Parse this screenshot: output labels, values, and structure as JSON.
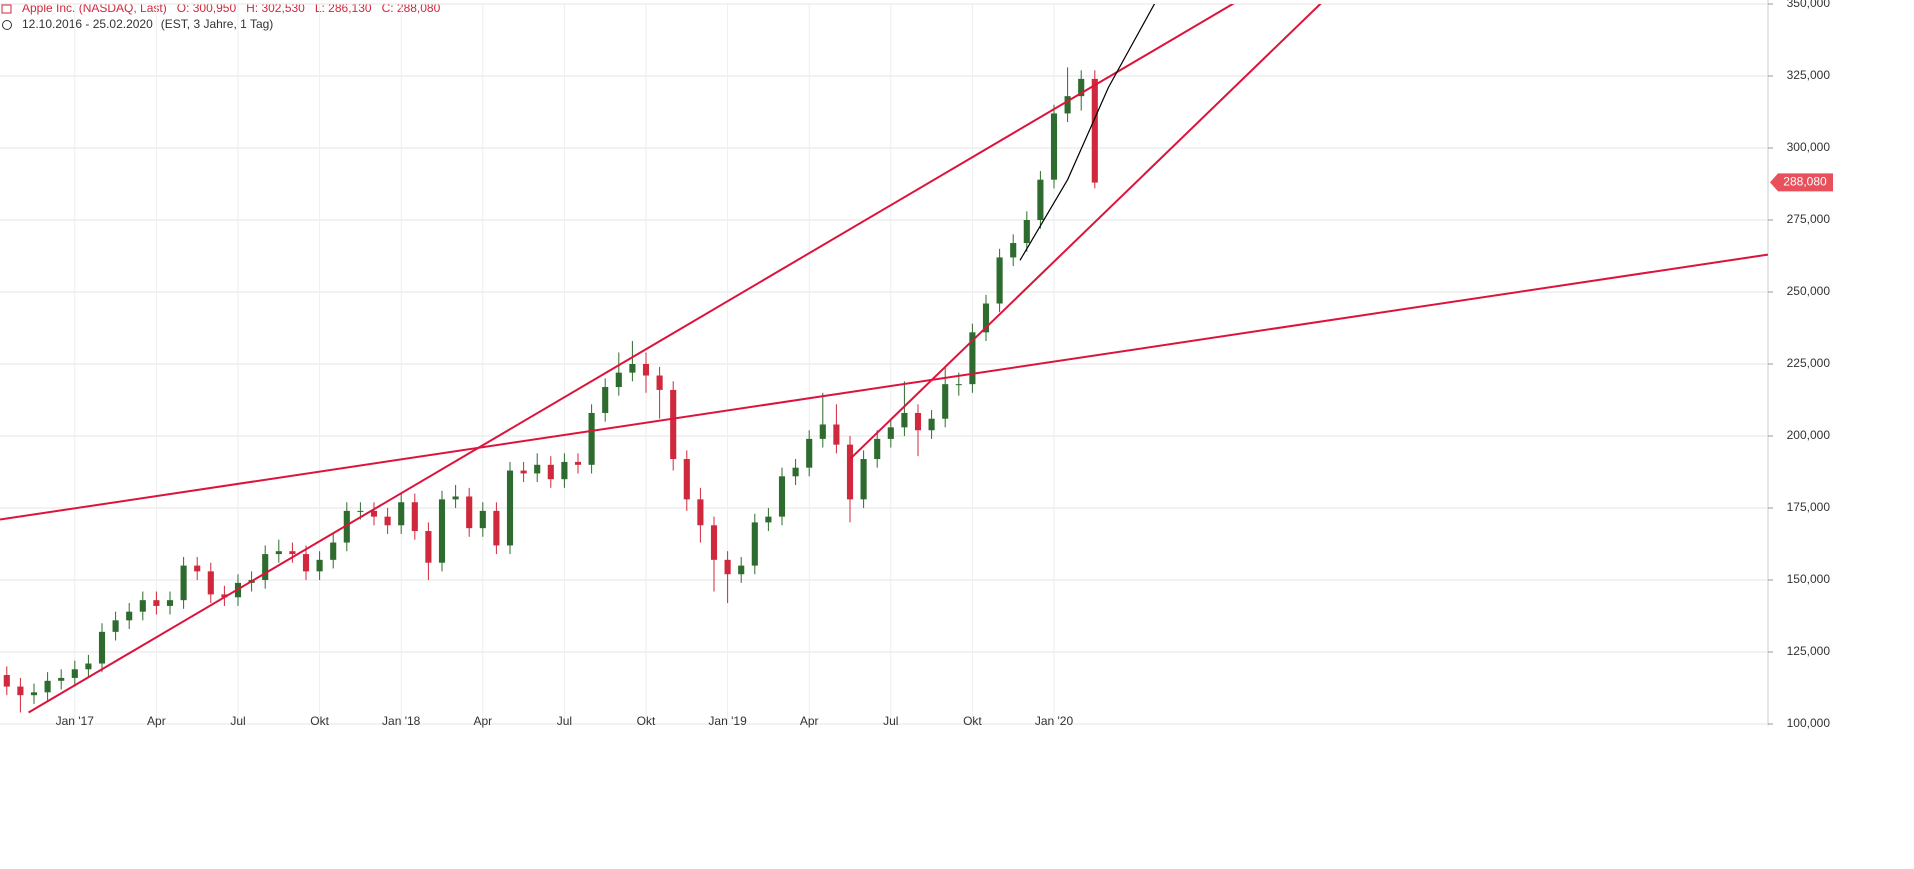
{
  "chart_data": {
    "type": "candlestick",
    "legend": {
      "name": "Apple Inc. (NASDAQ, Last)",
      "items": [
        "O: 300,950",
        "H: 302,530",
        "L: 286,130",
        "C: 288,080"
      ]
    },
    "subtitle": "12.10.2016 - 25.02.2020",
    "subtitle_note": "(EST, 3 Jahre, 1 Tag)",
    "up_color": "#2e6b2e",
    "down_color": "#d0283c",
    "open": [
      117,
      113,
      110,
      111,
      115,
      116,
      119,
      121,
      132,
      136,
      139,
      143,
      141,
      143,
      155,
      153,
      145,
      144,
      149,
      150,
      159,
      160,
      159,
      153,
      157,
      163,
      174,
      174,
      172,
      169,
      177,
      167,
      156,
      178,
      179,
      168,
      174,
      162,
      188,
      187,
      190,
      185,
      191,
      190,
      208,
      217,
      222,
      225,
      221,
      216,
      192,
      178,
      169,
      157,
      152,
      155,
      170,
      172,
      186,
      189,
      199,
      204,
      197,
      178,
      192,
      199,
      203,
      208,
      202,
      206,
      218,
      218,
      236,
      246,
      262,
      267,
      275,
      289,
      312,
      318,
      324
    ],
    "high": [
      120,
      116,
      114,
      118,
      119,
      122,
      124,
      135,
      139,
      142,
      146,
      146,
      146,
      158,
      158,
      156,
      148,
      152,
      153,
      162,
      164,
      163,
      162,
      160,
      166,
      177,
      177,
      177,
      175,
      180,
      180,
      170,
      181,
      183,
      182,
      177,
      177,
      191,
      191,
      194,
      193,
      194,
      194,
      211,
      220,
      229,
      233,
      229,
      224,
      219,
      195,
      182,
      172,
      160,
      158,
      173,
      175,
      189,
      192,
      202,
      215,
      211,
      200,
      195,
      202,
      206,
      219,
      211,
      209,
      224,
      222,
      239,
      249,
      265,
      270,
      278,
      292,
      315,
      328,
      327,
      327
    ],
    "low": [
      110,
      104,
      107,
      108,
      112,
      113,
      116,
      118,
      129,
      133,
      136,
      138,
      138,
      140,
      150,
      142,
      141,
      141,
      146,
      147,
      156,
      156,
      150,
      150,
      154,
      160,
      171,
      169,
      166,
      166,
      164,
      150,
      153,
      175,
      165,
      165,
      159,
      159,
      184,
      184,
      182,
      182,
      187,
      187,
      205,
      214,
      219,
      215,
      206,
      188,
      174,
      163,
      146,
      142,
      149,
      152,
      167,
      169,
      183,
      186,
      196,
      194,
      170,
      175,
      189,
      196,
      200,
      193,
      199,
      203,
      214,
      215,
      233,
      243,
      259,
      264,
      272,
      286,
      309,
      313,
      286
    ],
    "close": [
      113,
      110,
      111,
      115,
      116,
      119,
      121,
      132,
      136,
      139,
      143,
      141,
      143,
      155,
      153,
      145,
      144,
      149,
      150,
      159,
      160,
      159,
      153,
      157,
      163,
      174,
      174,
      172,
      169,
      177,
      167,
      156,
      178,
      179,
      168,
      174,
      162,
      188,
      187,
      190,
      185,
      191,
      190,
      208,
      217,
      222,
      225,
      221,
      216,
      192,
      178,
      169,
      157,
      152,
      155,
      170,
      172,
      186,
      189,
      199,
      204,
      197,
      178,
      192,
      199,
      203,
      208,
      202,
      206,
      218,
      218,
      236,
      246,
      262,
      267,
      275,
      289,
      312,
      318,
      324,
      288
    ],
    "xlim": [
      -0.5,
      129.5
    ],
    "xticks": [
      {
        "value": 5,
        "label": "Jan '17"
      },
      {
        "value": 11,
        "label": "Apr"
      },
      {
        "value": 17,
        "label": "Jul"
      },
      {
        "value": 23,
        "label": "Okt"
      },
      {
        "value": 29,
        "label": "Jan '18"
      },
      {
        "value": 35,
        "label": "Apr"
      },
      {
        "value": 41,
        "label": "Jul"
      },
      {
        "value": 47,
        "label": "Okt"
      },
      {
        "value": 53,
        "label": "Jan '19"
      },
      {
        "value": 59,
        "label": "Apr"
      },
      {
        "value": 65,
        "label": "Jul"
      },
      {
        "value": 71,
        "label": "Okt"
      },
      {
        "value": 77,
        "label": "Jan '20"
      }
    ],
    "ylim": [
      100,
      350
    ],
    "yticks": [
      {
        "value": 100,
        "label": "100,000"
      },
      {
        "value": 125,
        "label": "125,000"
      },
      {
        "value": 150,
        "label": "150,000"
      },
      {
        "value": 175,
        "label": "175,000"
      },
      {
        "value": 200,
        "label": "200,000"
      },
      {
        "value": 225,
        "label": "225,000"
      },
      {
        "value": 250,
        "label": "250,000"
      },
      {
        "value": 275,
        "label": "275,000"
      },
      {
        "value": 300,
        "label": "300,000"
      },
      {
        "value": 325,
        "label": "325,000"
      },
      {
        "value": 350,
        "label": "350,000"
      }
    ],
    "grid": true,
    "last_price": {
      "value": 288.08,
      "label": "288,080",
      "color": "#e8505b"
    },
    "trendlines": [
      {
        "color": "#dc143c",
        "x": [
          -0.5,
          129.5
        ],
        "y": [
          171,
          263
        ]
      },
      {
        "color": "#dc143c",
        "x": [
          1.6,
          90.5
        ],
        "y": [
          104,
          351
        ]
      },
      {
        "color": "#dc143c",
        "x": [
          62,
          96.8
        ],
        "y": [
          192,
          351
        ]
      },
      {
        "color": "#000000",
        "x": [
          74.5,
          78,
          81,
          84.5
        ],
        "y": [
          261,
          289,
          321,
          351
        ]
      }
    ]
  }
}
